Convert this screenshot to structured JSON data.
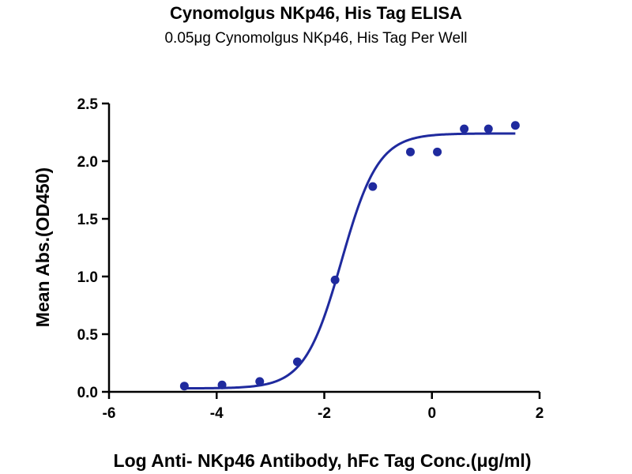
{
  "chart_data": {
    "type": "scatter",
    "title": "Cynomolgus NKp46, His Tag ELISA",
    "subtitle": "0.05μg Cynomolgus NKp46, His Tag Per Well",
    "xlabel": "Log Anti- NKp46 Antibody, hFc Tag Conc.(μg/ml)",
    "ylabel": "Mean Abs.(OD450)",
    "xlim": [
      -6,
      2
    ],
    "ylim": [
      0,
      2.5
    ],
    "xticks": [
      -6,
      -4,
      -2,
      0,
      2
    ],
    "yticks": [
      0.0,
      0.5,
      1.0,
      1.5,
      2.0,
      2.5
    ],
    "xtick_labels": [
      "-6",
      "-4",
      "-2",
      "0",
      "2"
    ],
    "ytick_labels": [
      "0.0",
      "0.5",
      "1.0",
      "1.5",
      "2.0",
      "2.5"
    ],
    "grid": false,
    "series": [
      {
        "type": "scatter",
        "color": "#1f2a9e",
        "x": [
          -4.6,
          -3.9,
          -3.2,
          -2.5,
          -1.8,
          -1.1,
          -0.4,
          0.1,
          0.6,
          1.05,
          1.55
        ],
        "y": [
          0.05,
          0.06,
          0.09,
          0.26,
          0.97,
          1.78,
          2.08,
          2.08,
          2.28,
          2.28,
          2.31
        ]
      },
      {
        "type": "line",
        "color": "#1f2a9e",
        "fit": "four-parameter-logistic",
        "x_range": [
          -4.6,
          1.55
        ],
        "bottom": 0.03,
        "top": 2.24,
        "log_ec50": -1.68,
        "hill_slope": 1.27
      }
    ]
  }
}
